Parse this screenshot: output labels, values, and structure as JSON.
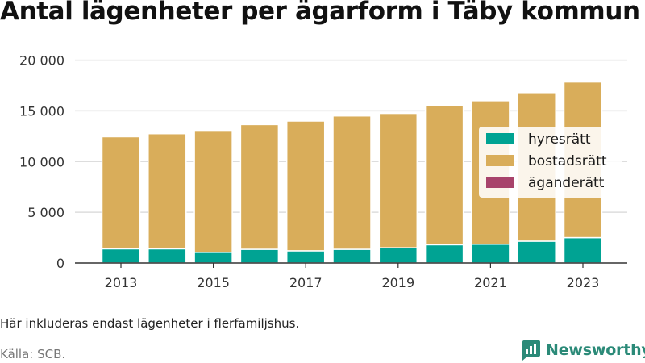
{
  "title": "Antal lägenheter per ägarform i Täby kommun",
  "note": "Här inkluderas endast lägenheter i flerfamiljshus.",
  "source": "Källa: SCB.",
  "brand": "Newsworthy",
  "colors": {
    "hyresratt": "#00a393",
    "bostadsratt": "#d9ad5a",
    "aganderatt": "#a8436b",
    "grid": "#dddddd",
    "axis": "#333333",
    "brand": "#2b8a78"
  },
  "chart_data": {
    "type": "bar",
    "stacked": true,
    "categories": [
      "2013",
      "2014",
      "2015",
      "2016",
      "2017",
      "2018",
      "2019",
      "2020",
      "2021",
      "2022",
      "2023"
    ],
    "x_tick_labels": [
      "2013",
      "2015",
      "2017",
      "2019",
      "2021",
      "2023"
    ],
    "y_tick_labels": [
      "0",
      "5 000",
      "10 000",
      "15 000",
      "20 000"
    ],
    "y_ticks": [
      0,
      5000,
      10000,
      15000,
      20000
    ],
    "ylim": [
      0,
      21000
    ],
    "grid": true,
    "legend_position": "right",
    "series": [
      {
        "name": "hyresrätt",
        "color_key": "hyresratt",
        "values": [
          1400,
          1400,
          1050,
          1350,
          1200,
          1350,
          1500,
          1800,
          1850,
          2150,
          2500
        ]
      },
      {
        "name": "bostadsrätt",
        "color_key": "bostadsratt",
        "values": [
          11050,
          11350,
          11950,
          12300,
          12800,
          13150,
          13250,
          13750,
          14150,
          14650,
          15350
        ]
      },
      {
        "name": "äganderätt",
        "color_key": "aganderatt",
        "values": [
          0,
          0,
          0,
          0,
          0,
          0,
          0,
          0,
          0,
          0,
          0
        ]
      }
    ]
  }
}
